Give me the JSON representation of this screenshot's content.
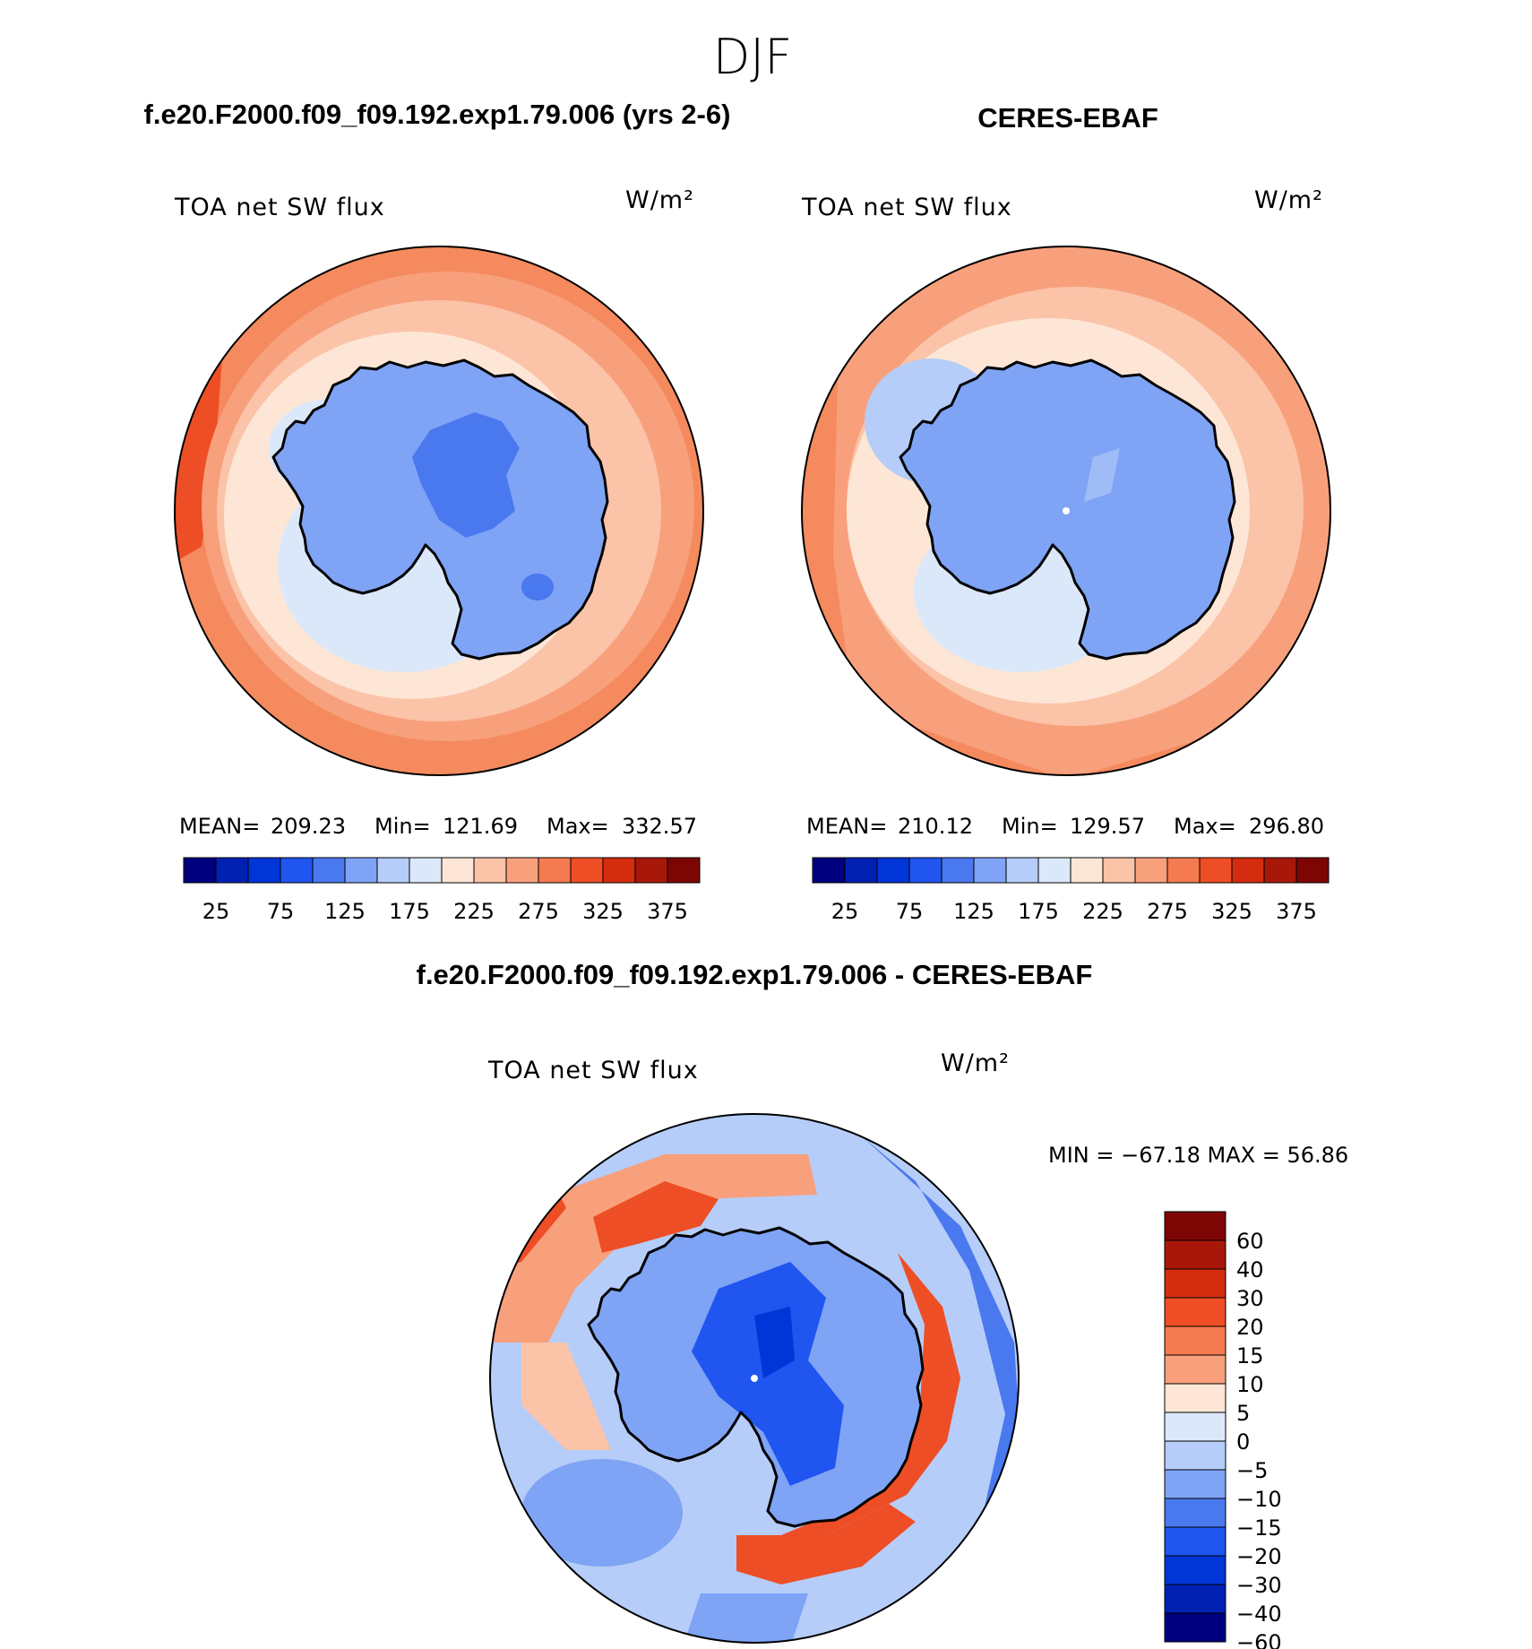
{
  "season": "DJF",
  "panels": [
    {
      "id": "model",
      "case_title": "f.e20.F2000.f09_f09.192.exp1.79.006 (yrs 2-6)",
      "variable": "TOA net SW flux",
      "units": "W/m²",
      "stats": {
        "mean_label": "MEAN=",
        "mean": "209.23",
        "min_label": "Min=",
        "min": "121.69",
        "max_label": "Max=",
        "max": "332.57"
      }
    },
    {
      "id": "obs",
      "case_title": "CERES-EBAF",
      "variable": "TOA net SW flux",
      "units": "W/m²",
      "stats": {
        "mean_label": "MEAN=",
        "mean": "210.12",
        "min_label": "Min=",
        "min": "129.57",
        "max_label": "Max=",
        "max": "296.80"
      }
    },
    {
      "id": "diff",
      "case_title": "f.e20.F2000.f09_f09.192.exp1.79.006 - CERES-EBAF",
      "variable": "TOA net SW flux",
      "units": "W/m²",
      "stats_text": "MIN = −67.18 MAX =   56.86"
    }
  ],
  "colorbar_abs": {
    "colors": [
      "#00007f",
      "#0020b2",
      "#0035d8",
      "#2055f0",
      "#4a78ee",
      "#7fa3f5",
      "#b5cdf8",
      "#dbe8fa",
      "#fde6d6",
      "#fbc3a8",
      "#f8a07c",
      "#f47a4f",
      "#ee4e25",
      "#d42c0e",
      "#a8180a",
      "#7d0605"
    ],
    "tick_labels": [
      "25",
      "75",
      "125",
      "175",
      "225",
      "275",
      "325",
      "375"
    ]
  },
  "colorbar_diff": {
    "colors": [
      "#7d0605",
      "#a8180a",
      "#d42c0e",
      "#ee4e25",
      "#f47a4f",
      "#f8a07c",
      "#fde6d6",
      "#dbe8fa",
      "#b5cdf8",
      "#7fa3f5",
      "#4a78ee",
      "#2055f0",
      "#0035d8",
      "#0020b2",
      "#00007f"
    ],
    "tick_labels": [
      "60",
      "40",
      "30",
      "20",
      "15",
      "10",
      "5",
      "0",
      "−5",
      "−10",
      "−15",
      "−20",
      "−30",
      "−40",
      "−60"
    ]
  }
}
